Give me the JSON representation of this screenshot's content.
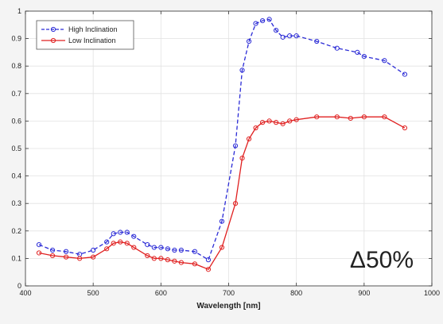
{
  "chart_data": {
    "type": "line",
    "title": "",
    "xlabel": "Wavelength [nm]",
    "ylabel": "",
    "xlim": [
      400,
      1000
    ],
    "ylim": [
      0,
      1
    ],
    "x_ticks": [
      400,
      500,
      600,
      700,
      800,
      900,
      1000
    ],
    "y_ticks": [
      0,
      0.1,
      0.2,
      0.3,
      0.4,
      0.5,
      0.6,
      0.7,
      0.8,
      0.9,
      1
    ],
    "x_tick_labels": [
      "400",
      "500",
      "600",
      "700",
      "800",
      "900",
      "1000"
    ],
    "y_tick_labels": [
      "0",
      "0.1",
      "0.2",
      "0.3",
      "0.4",
      "0.5",
      "0.6",
      "0.7",
      "0.8",
      "0.9",
      "1"
    ],
    "grid": true,
    "legend_position": "top-left",
    "annotation": "Δ50%",
    "series": [
      {
        "name": "High Inclination",
        "color": "#2b2bd6",
        "line_style": "dashed",
        "marker": "circle",
        "x": [
          420,
          440,
          460,
          480,
          500,
          520,
          530,
          540,
          550,
          560,
          580,
          590,
          600,
          610,
          620,
          630,
          650,
          670,
          690,
          710,
          720,
          730,
          740,
          750,
          760,
          770,
          780,
          790,
          800,
          830,
          860,
          890,
          900,
          930,
          960
        ],
        "y": [
          0.15,
          0.13,
          0.125,
          0.115,
          0.13,
          0.16,
          0.19,
          0.195,
          0.195,
          0.18,
          0.15,
          0.14,
          0.14,
          0.135,
          0.13,
          0.13,
          0.125,
          0.095,
          0.235,
          0.51,
          0.785,
          0.89,
          0.955,
          0.965,
          0.97,
          0.93,
          0.905,
          0.91,
          0.91,
          0.89,
          0.865,
          0.85,
          0.835,
          0.82,
          0.77
        ]
      },
      {
        "name": "Low Inclination",
        "color": "#e02020",
        "line_style": "solid",
        "marker": "circle",
        "x": [
          420,
          440,
          460,
          480,
          500,
          520,
          530,
          540,
          550,
          560,
          580,
          590,
          600,
          610,
          620,
          630,
          650,
          670,
          690,
          710,
          720,
          730,
          740,
          750,
          760,
          770,
          780,
          790,
          800,
          830,
          860,
          880,
          900,
          930,
          960
        ],
        "y": [
          0.12,
          0.11,
          0.105,
          0.1,
          0.105,
          0.135,
          0.155,
          0.16,
          0.155,
          0.14,
          0.11,
          0.1,
          0.1,
          0.095,
          0.09,
          0.085,
          0.08,
          0.06,
          0.14,
          0.3,
          0.465,
          0.535,
          0.575,
          0.595,
          0.6,
          0.595,
          0.59,
          0.6,
          0.605,
          0.615,
          0.615,
          0.61,
          0.615,
          0.615,
          0.575
        ]
      }
    ]
  }
}
